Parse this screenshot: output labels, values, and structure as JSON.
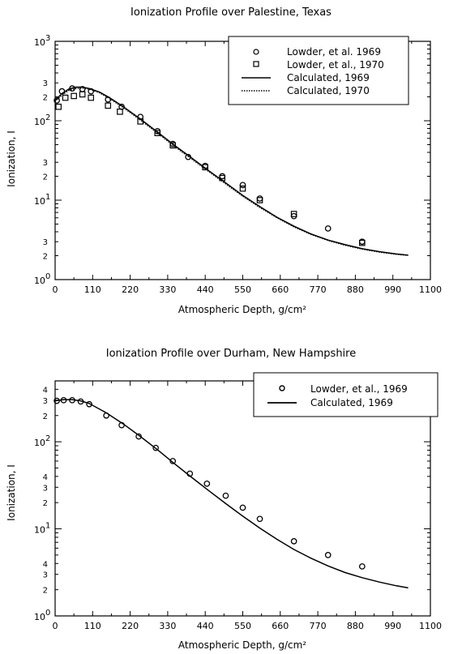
{
  "chart_data": [
    {
      "type": "scatter",
      "title": "Ionization Profile over Palestine, Texas",
      "xlabel": "Atmospheric Depth, g/cm²",
      "ylabel": "Ionization, I",
      "xlim": [
        0,
        1100
      ],
      "ylim": [
        1,
        1000
      ],
      "yscale": "log",
      "x_ticks": [
        "0",
        "110",
        "220",
        "330",
        "440",
        "550",
        "660",
        "770",
        "880",
        "990",
        "1100"
      ],
      "y_major_ticks": [
        {
          "base": "10",
          "exp": "0"
        },
        {
          "base": "10",
          "exp": "1"
        },
        {
          "base": "10",
          "exp": "2"
        },
        {
          "base": "10",
          "exp": "3"
        }
      ],
      "y_minor_labels": [
        "2",
        "3",
        "2",
        "3",
        "2",
        "3"
      ],
      "legend_position": "top-right",
      "series": [
        {
          "name": "Lowder, et al. 1969",
          "marker": "circle",
          "x": [
            5,
            20,
            50,
            80,
            105,
            155,
            195,
            250,
            300,
            345,
            390,
            440,
            490,
            550,
            600,
            700,
            800,
            900
          ],
          "y": [
            180,
            235,
            255,
            250,
            235,
            185,
            150,
            112,
            74,
            51,
            35,
            27,
            20,
            15.5,
            10.5,
            6.3,
            4.4,
            3.0
          ]
        },
        {
          "name": "Lowder, et al., 1970",
          "marker": "square",
          "x": [
            10,
            30,
            55,
            80,
            105,
            155,
            190,
            250,
            300,
            345,
            440,
            490,
            550,
            600,
            700,
            900
          ],
          "y": [
            150,
            195,
            205,
            215,
            195,
            155,
            130,
            98,
            70,
            49,
            26,
            19,
            14,
            10,
            6.7,
            2.9
          ]
        },
        {
          "name": "Calculated, 1969",
          "line": "solid",
          "x": [
            0,
            20,
            40,
            60,
            80,
            100,
            130,
            160,
            200,
            250,
            300,
            350,
            400,
            450,
            500,
            550,
            600,
            650,
            700,
            750,
            800,
            850,
            900,
            950,
            1000,
            1035
          ],
          "y": [
            180,
            220,
            250,
            265,
            265,
            255,
            230,
            195,
            150,
            105,
            72,
            49,
            34,
            23.5,
            16.5,
            11.5,
            8.3,
            6.1,
            4.7,
            3.75,
            3.15,
            2.75,
            2.45,
            2.25,
            2.1,
            2.03
          ]
        },
        {
          "name": "Calculated, 1970",
          "line": "dotted",
          "x": [
            0,
            20,
            40,
            60,
            80,
            100,
            130,
            160,
            200,
            250,
            300,
            350,
            400,
            450,
            500,
            550,
            600,
            650,
            700,
            750,
            800,
            850,
            900,
            950,
            1000,
            1035
          ],
          "y": [
            175,
            210,
            240,
            255,
            258,
            250,
            225,
            190,
            146,
            102,
            70,
            47.5,
            33,
            23,
            16,
            11.2,
            8.1,
            6.0,
            4.6,
            3.7,
            3.1,
            2.7,
            2.42,
            2.22,
            2.08,
            2.02
          ]
        }
      ]
    },
    {
      "type": "scatter",
      "title": "Ionization Profile over Durham, New Hampshire",
      "xlabel": "Atmospheric Depth, g/cm²",
      "ylabel": "Ionization, I",
      "xlim": [
        0,
        1100
      ],
      "ylim": [
        1,
        500
      ],
      "yscale": "log",
      "x_ticks": [
        "0",
        "110",
        "220",
        "330",
        "440",
        "550",
        "660",
        "770",
        "880",
        "990",
        "1100"
      ],
      "y_major_ticks": [
        {
          "base": "10",
          "exp": "0"
        },
        {
          "base": "10",
          "exp": "1"
        },
        {
          "base": "10",
          "exp": "2"
        }
      ],
      "y_minor_labels": [
        "2",
        "3",
        "4",
        "2",
        "3",
        "4",
        "2",
        "3",
        "4"
      ],
      "legend_position": "top-right",
      "series": [
        {
          "name": "Lowder, et al., 1969",
          "marker": "circle",
          "x": [
            5,
            25,
            50,
            75,
            100,
            150,
            195,
            245,
            295,
            345,
            395,
            445,
            500,
            550,
            600,
            700,
            800,
            900
          ],
          "y": [
            295,
            300,
            300,
            290,
            270,
            200,
            155,
            115,
            85,
            60,
            43,
            33,
            24,
            17.5,
            13,
            7.2,
            5.0,
            3.7
          ]
        },
        {
          "name": "Calculated, 1969",
          "line": "solid",
          "x": [
            0,
            25,
            50,
            75,
            100,
            150,
            200,
            250,
            300,
            350,
            400,
            450,
            500,
            550,
            600,
            650,
            700,
            750,
            800,
            850,
            900,
            950,
            1000,
            1035
          ],
          "y": [
            295,
            305,
            305,
            295,
            275,
            215,
            160,
            115,
            81,
            56,
            39,
            27.5,
            19.5,
            14,
            10.2,
            7.6,
            5.8,
            4.6,
            3.75,
            3.15,
            2.75,
            2.45,
            2.22,
            2.1
          ]
        }
      ]
    }
  ]
}
